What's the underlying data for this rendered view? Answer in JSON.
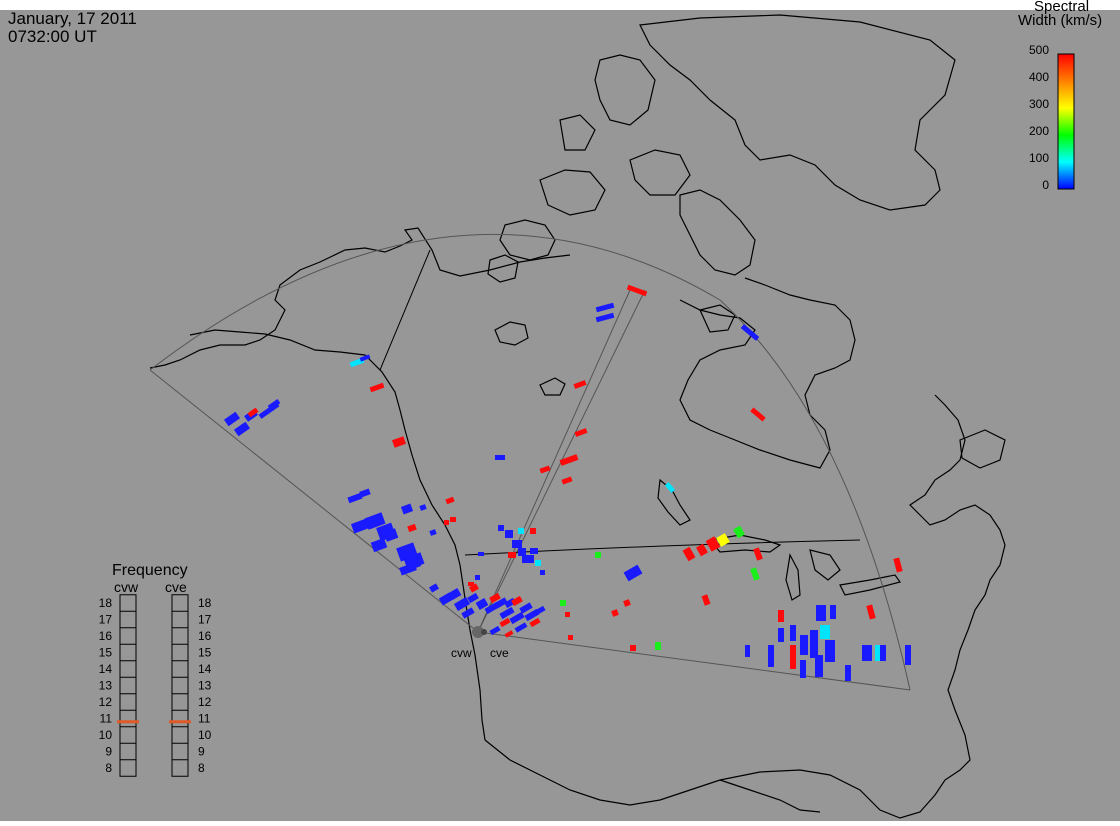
{
  "header": {
    "date": "January, 17 2011",
    "time": "0732:00 UT"
  },
  "colorbar": {
    "title_line1": "Spectral",
    "title_line2": "Width (km/s)",
    "ticks": [
      "500",
      "400",
      "300",
      "200",
      "100",
      "0"
    ],
    "gradient_colors": [
      "#ff0000",
      "#ff8000",
      "#ffff00",
      "#00ff00",
      "#00ffff",
      "#0000ff"
    ]
  },
  "frequency_panel": {
    "title": "Frequency",
    "radar_labels": [
      "cvw",
      "cve"
    ],
    "scale": [
      "18",
      "17",
      "16",
      "15",
      "14",
      "13",
      "12",
      "11",
      "10",
      "9",
      "8"
    ],
    "cvw_value": 10.8,
    "cve_value": 10.8,
    "marker_color": "#e05a28"
  },
  "radars": {
    "site_labels": [
      "cvw",
      "cve"
    ]
  },
  "colors": {
    "background": "#979797",
    "coastline": "#000000",
    "fov_outline": "#555555",
    "blue": "#1a1aff",
    "red": "#ff0a0a",
    "green": "#1aee1a",
    "cyan": "#00e5ff",
    "yellow": "#ffff00"
  }
}
